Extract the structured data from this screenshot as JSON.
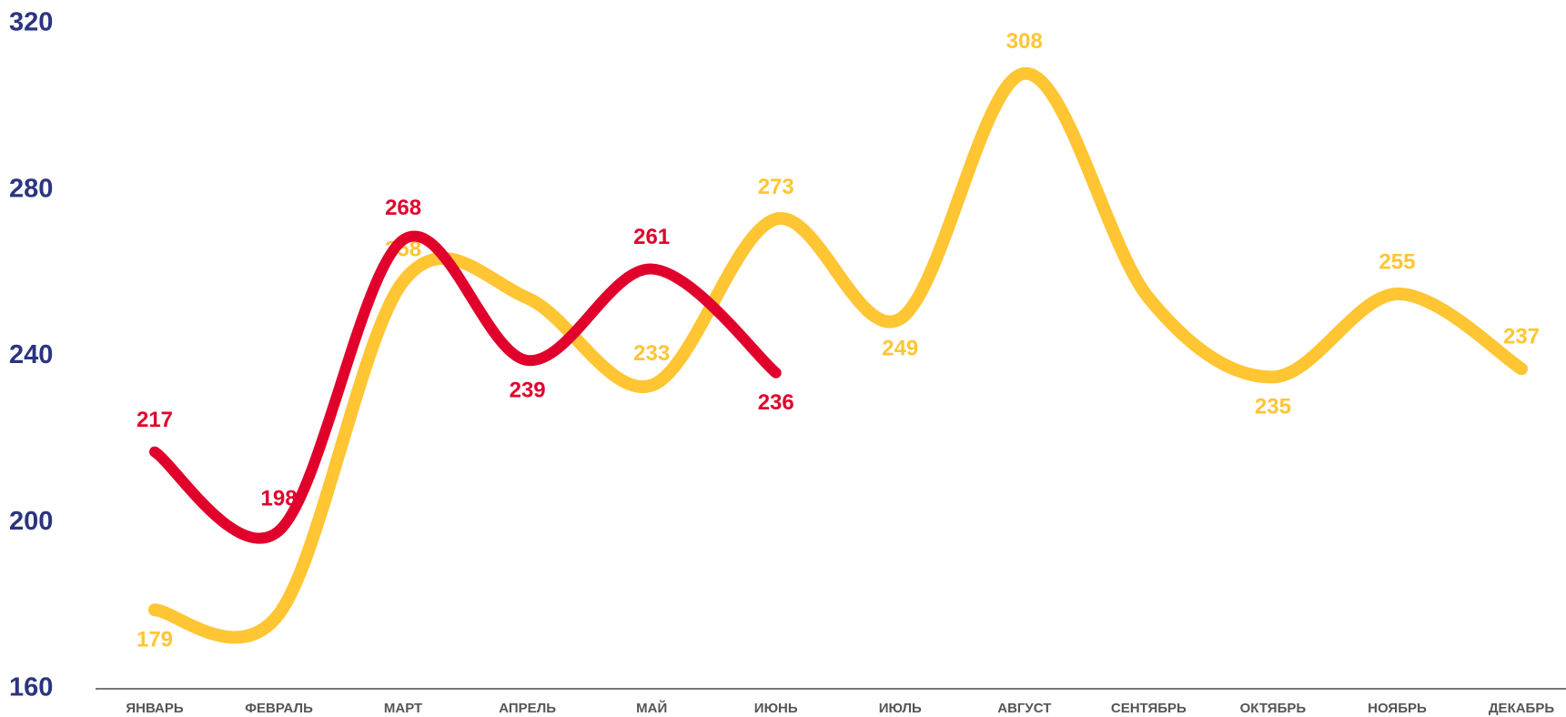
{
  "chart_data": {
    "type": "line",
    "categories": [
      "ЯНВАРЬ",
      "ФЕВРАЛЬ",
      "МАРТ",
      "АПРЕЛЬ",
      "МАЙ",
      "ИЮНЬ",
      "ИЮЛЬ",
      "АВГУСТ",
      "СЕНТЯБРЬ",
      "ОКТЯБРЬ",
      "НОЯБРЬ",
      "ДЕКАБРЬ"
    ],
    "series": [
      {
        "color": "#ffc533",
        "values": [
          179,
          178,
          258,
          254,
          233,
          273,
          249,
          308,
          254,
          235,
          255,
          237
        ],
        "value_labels": [
          "179",
          null,
          "258",
          null,
          "233",
          "273",
          "249",
          "308",
          null,
          "235",
          "255",
          "237"
        ]
      },
      {
        "color": "#e0002b",
        "values": [
          217,
          198,
          268,
          239,
          261,
          236,
          null,
          null,
          null,
          null,
          null,
          null
        ],
        "value_labels": [
          "217",
          "198",
          "268",
          "239",
          "261",
          "236",
          null,
          null,
          null,
          null,
          null,
          null
        ]
      }
    ],
    "ylim": [
      160,
      320
    ],
    "yticks": [
      160,
      200,
      240,
      280,
      320
    ],
    "grid": false
  }
}
